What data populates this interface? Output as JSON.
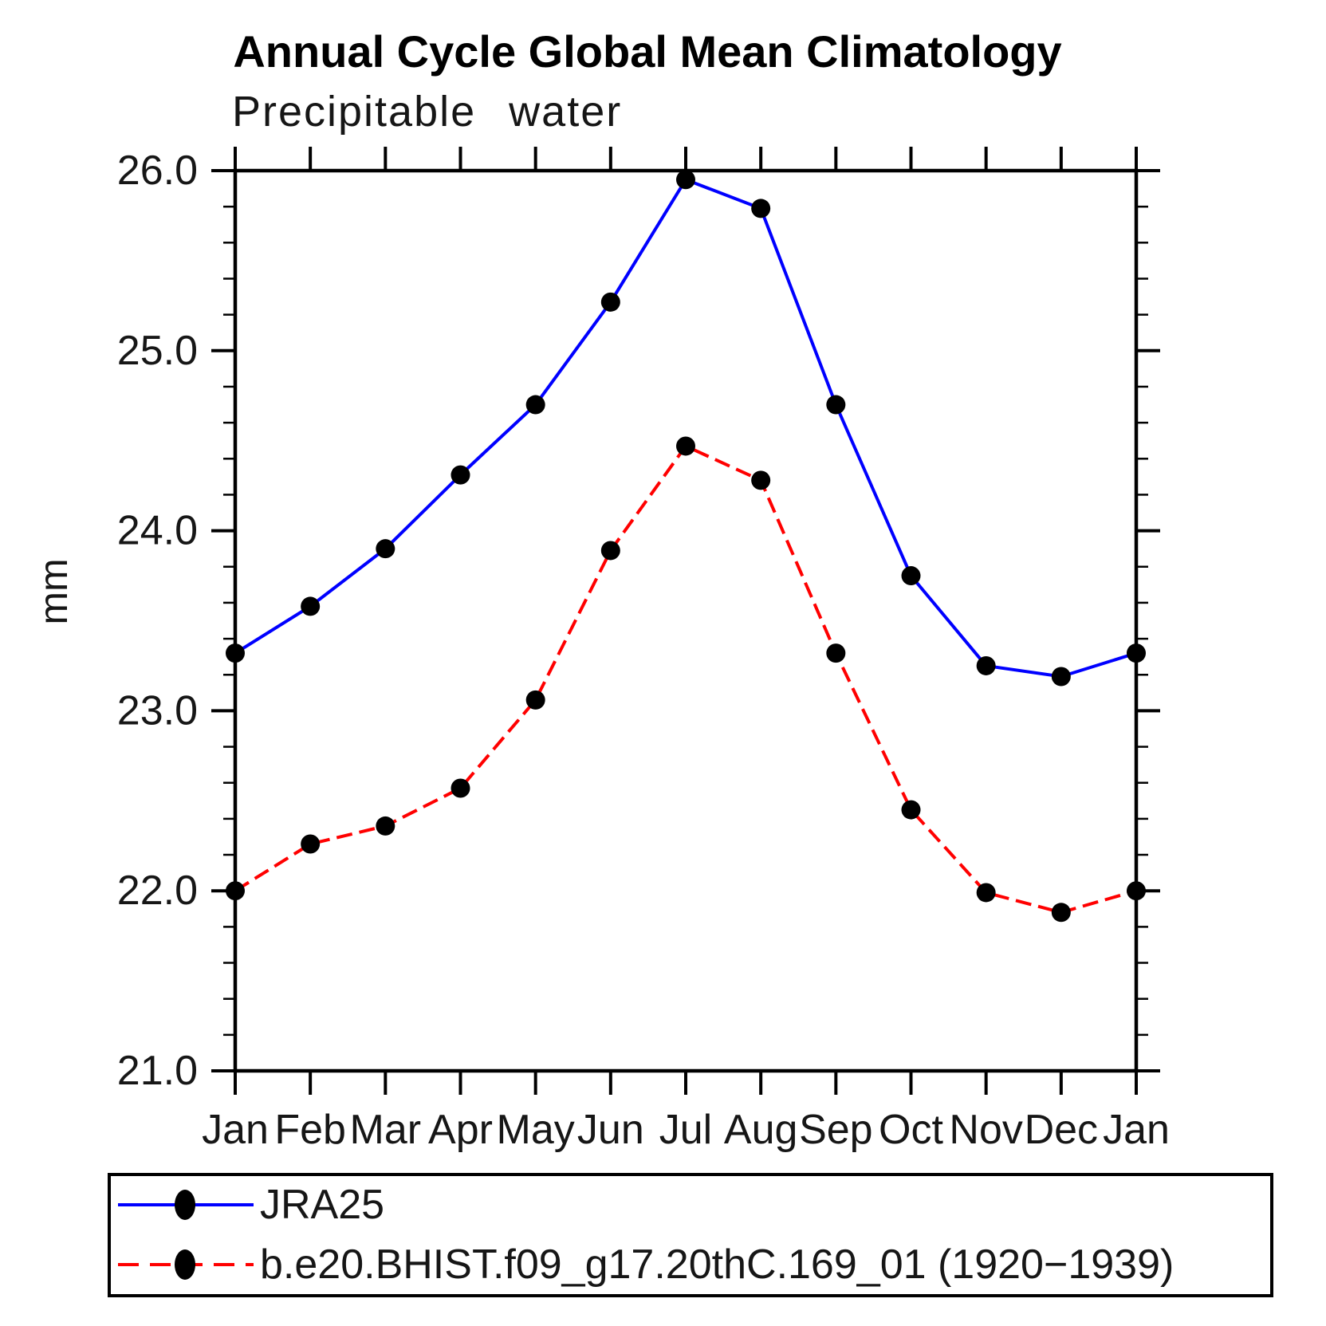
{
  "chart_data": {
    "type": "line",
    "title": "Annual Cycle Global Mean Climatology",
    "subtitle": "Precipitable water",
    "ylabel": "mm",
    "categories": [
      "Jan",
      "Feb",
      "Mar",
      "Apr",
      "May",
      "Jun",
      "Jul",
      "Aug",
      "Sep",
      "Oct",
      "Nov",
      "Dec",
      "Jan"
    ],
    "ylim": [
      21.0,
      26.0
    ],
    "y_ticks": [
      21.0,
      22.0,
      23.0,
      24.0,
      25.0,
      26.0
    ],
    "y_tick_labels": [
      "21.0",
      "22.0",
      "23.0",
      "24.0",
      "25.0",
      "26.0"
    ],
    "y_minor_step": 0.2,
    "grid": false,
    "legend_position": "bottom",
    "series": [
      {
        "name": "JRA25",
        "color": "#0000ff",
        "line_style": "solid",
        "marker": "filled-circle",
        "marker_color": "#000000",
        "values": [
          23.32,
          23.58,
          23.9,
          24.31,
          24.7,
          25.27,
          25.95,
          25.79,
          24.7,
          23.75,
          23.25,
          23.19,
          23.32
        ]
      },
      {
        "name": "b.e20.BHIST.f09_g17.20thC.169_01 (1920−1939)",
        "color": "#ff0000",
        "line_style": "dashed",
        "marker": "filled-circle",
        "marker_color": "#000000",
        "values": [
          22.0,
          22.26,
          22.36,
          22.57,
          23.06,
          23.89,
          24.47,
          24.28,
          23.32,
          22.45,
          21.99,
          21.88,
          22.0
        ]
      }
    ],
    "colors": {
      "axis": "#000000",
      "background": "#ffffff"
    }
  }
}
